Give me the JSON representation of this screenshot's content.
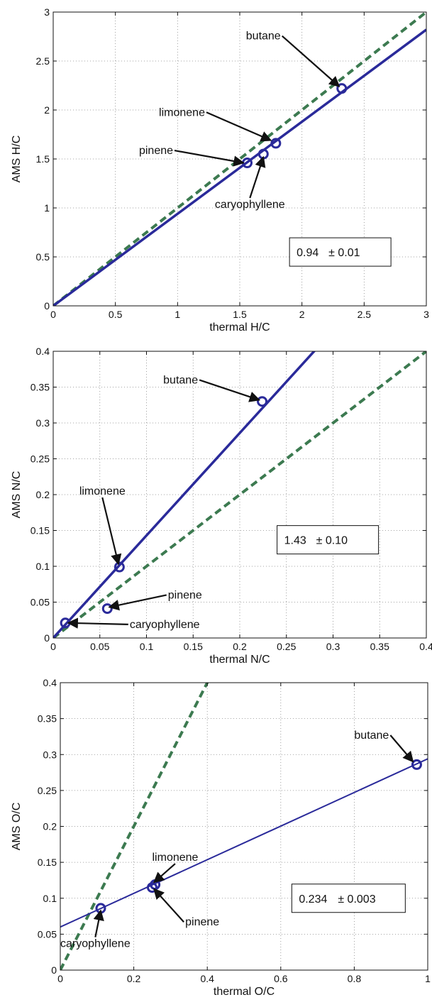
{
  "chart_data": [
    {
      "type": "scatter",
      "xlabel": "thermal H/C",
      "ylabel": "AMS H/C",
      "xlim": [
        0,
        3
      ],
      "ylim": [
        0,
        3
      ],
      "xticks": [
        0,
        0.5,
        1,
        1.5,
        2,
        2.5,
        3
      ],
      "yticks": [
        0,
        0.5,
        1,
        1.5,
        2,
        2.5,
        3
      ],
      "xtick_labels": [
        "0",
        "0.5",
        "1",
        "1.5",
        "2",
        "2.5",
        "3"
      ],
      "ytick_labels": [
        "0",
        "0.5",
        "1",
        "1.5",
        "2",
        "2.5",
        "3"
      ],
      "grid": true,
      "points": [
        {
          "name": "butane",
          "x": 2.32,
          "y": 2.22
        },
        {
          "name": "limonene",
          "x": 1.79,
          "y": 1.66
        },
        {
          "name": "pinene",
          "x": 1.56,
          "y": 1.46
        },
        {
          "name": "caryophyllene",
          "x": 1.69,
          "y": 1.55
        }
      ],
      "annotations": [
        {
          "text": "butane",
          "tx": 1.55,
          "ty": 2.72,
          "ax": 2.3,
          "ay": 2.24
        },
        {
          "text": "limonene",
          "tx": 0.85,
          "ty": 1.94,
          "ax": 1.75,
          "ay": 1.69
        },
        {
          "text": "pinene",
          "tx": 0.69,
          "ty": 1.55,
          "ax": 1.53,
          "ay": 1.46
        },
        {
          "text": "caryophyllene",
          "tx": 1.3,
          "ty": 1.0,
          "ax": 1.69,
          "ay": 1.52
        }
      ],
      "fit_line": {
        "slope": 0.94,
        "intercept": 0
      },
      "one_to_one_line": {
        "slope": 1,
        "intercept": 0
      },
      "fit_box": {
        "x": 1.9,
        "y": 0.55,
        "slope_text": "0.94",
        "err_text": "± 0.01"
      },
      "colors": {
        "points": "#2a2a9a",
        "fit": "#2a2a9a",
        "one_to_one": "#3c7a50"
      }
    },
    {
      "type": "scatter",
      "xlabel": "thermal N/C",
      "ylabel": "AMS N/C",
      "xlim": [
        0,
        0.4
      ],
      "ylim": [
        0,
        0.4
      ],
      "xticks": [
        0,
        0.05,
        0.1,
        0.15,
        0.2,
        0.25,
        0.3,
        0.35,
        0.4
      ],
      "yticks": [
        0,
        0.05,
        0.1,
        0.15,
        0.2,
        0.25,
        0.3,
        0.35,
        0.4
      ],
      "xtick_labels": [
        "0",
        "0.05",
        "0.1",
        "0.15",
        "0.2",
        "0.25",
        "0.3",
        "0.35",
        "0.4"
      ],
      "ytick_labels": [
        "0",
        "0.05",
        "0.1",
        "0.15",
        "0.2",
        "0.25",
        "0.3",
        "0.35",
        "0.4"
      ],
      "grid": true,
      "points": [
        {
          "name": "butane",
          "x": 0.224,
          "y": 0.33
        },
        {
          "name": "limonene",
          "x": 0.071,
          "y": 0.099
        },
        {
          "name": "pinene",
          "x": 0.058,
          "y": 0.041
        },
        {
          "name": "caryophyllene",
          "x": 0.013,
          "y": 0.021
        }
      ],
      "annotations": [
        {
          "text": "butane",
          "tx": 0.118,
          "ty": 0.355,
          "ax": 0.221,
          "ay": 0.332
        },
        {
          "text": "limonene",
          "tx": 0.028,
          "ty": 0.2,
          "ax": 0.07,
          "ay": 0.103
        },
        {
          "text": "pinene",
          "tx": 0.123,
          "ty": 0.055,
          "ax": 0.06,
          "ay": 0.043
        },
        {
          "text": "caryophyllene",
          "tx": 0.082,
          "ty": 0.014,
          "ax": 0.016,
          "ay": 0.021
        }
      ],
      "fit_line": {
        "slope": 1.43,
        "intercept": 0
      },
      "one_to_one_line": {
        "slope": 1,
        "intercept": 0
      },
      "fit_box": {
        "x": 0.24,
        "y": 0.137,
        "slope_text": "1.43",
        "err_text": "± 0.10"
      },
      "colors": {
        "points": "#2a2a9a",
        "fit": "#2a2a9a",
        "one_to_one": "#3c7a50"
      }
    },
    {
      "type": "scatter",
      "xlabel": "thermal O/C",
      "ylabel": "AMS O/C",
      "xlim": [
        0,
        1
      ],
      "ylim": [
        0,
        0.4
      ],
      "xticks": [
        0,
        0.2,
        0.4,
        0.6,
        0.8,
        1
      ],
      "yticks": [
        0,
        0.05,
        0.1,
        0.15,
        0.2,
        0.25,
        0.3,
        0.35,
        0.4
      ],
      "xtick_labels": [
        "0",
        "0.2",
        "0.4",
        "0.6",
        "0.8",
        "1"
      ],
      "ytick_labels": [
        "0",
        "0.05",
        "0.1",
        "0.15",
        "0.2",
        "0.25",
        "0.3",
        "0.35",
        "0.4"
      ],
      "grid": true,
      "points": [
        {
          "name": "butane",
          "x": 0.97,
          "y": 0.286
        },
        {
          "name": "limonene",
          "x": 0.258,
          "y": 0.119
        },
        {
          "name": "pinene",
          "x": 0.25,
          "y": 0.115
        },
        {
          "name": "caryophyllene",
          "x": 0.11,
          "y": 0.086
        }
      ],
      "annotations": [
        {
          "text": "butane",
          "tx": 0.8,
          "ty": 0.322,
          "ax": 0.96,
          "ay": 0.29
        },
        {
          "text": "limonene",
          "tx": 0.25,
          "ty": 0.152,
          "ax": 0.255,
          "ay": 0.122
        },
        {
          "text": "pinene",
          "tx": 0.34,
          "ty": 0.062,
          "ax": 0.255,
          "ay": 0.113
        },
        {
          "text": "caryophyllene",
          "tx": 0.0,
          "ty": 0.032,
          "ax": 0.11,
          "ay": 0.083
        }
      ],
      "fit_line": {
        "slope": 0.234,
        "intercept": 0.06
      },
      "one_to_one_line": {
        "slope": 1,
        "intercept": 0
      },
      "fit_box": {
        "x": 0.63,
        "y": 0.1,
        "slope_text": "0.234",
        "err_text": "± 0.003"
      },
      "colors": {
        "points": "#2a2a9a",
        "fit": "#2a2a9a",
        "one_to_one": "#3c7a50"
      }
    }
  ]
}
